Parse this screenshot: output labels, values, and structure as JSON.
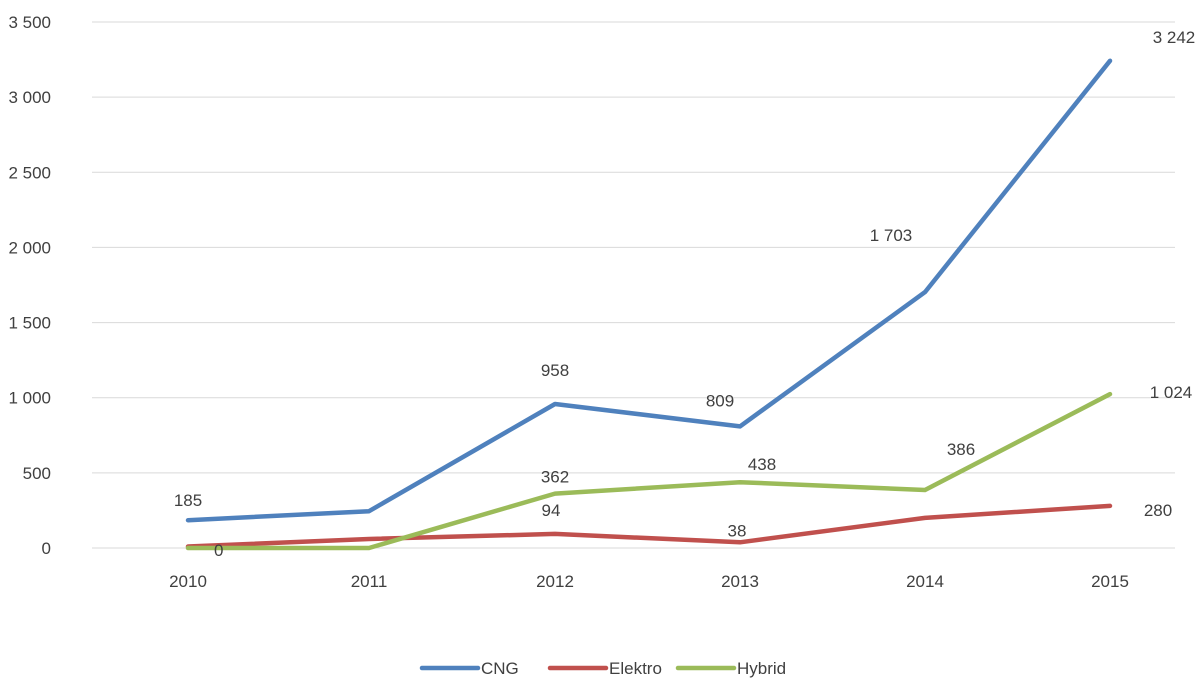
{
  "chart_data": {
    "type": "line",
    "categories": [
      "2010",
      "2011",
      "2012",
      "2013",
      "2014",
      "2015"
    ],
    "ylim": [
      0,
      3500
    ],
    "y_ticks": [
      0,
      500,
      1000,
      1500,
      2000,
      2500,
      3000,
      3500
    ],
    "y_tick_labels": [
      "0",
      "500",
      "1 000",
      "1 500",
      "2 000",
      "2 500",
      "3 000",
      "3 500"
    ],
    "grid": true,
    "legend_position": "bottom",
    "series": [
      {
        "name": "CNG",
        "color": "#4f81bd",
        "values": [
          185,
          245,
          958,
          809,
          1703,
          3242
        ],
        "labels": [
          "185",
          null,
          "958",
          "809",
          "1 703",
          "3 242"
        ]
      },
      {
        "name": "Elektro",
        "color": "#c0504d",
        "values": [
          10,
          60,
          94,
          38,
          200,
          280
        ],
        "labels": [
          null,
          null,
          "94",
          "38",
          null,
          "280"
        ]
      },
      {
        "name": "Hybrid",
        "color": "#9bbb59",
        "values": [
          0,
          0,
          362,
          438,
          386,
          1024
        ],
        "labels": [
          "0",
          null,
          "362",
          "438",
          "386",
          "1 024"
        ]
      }
    ]
  }
}
